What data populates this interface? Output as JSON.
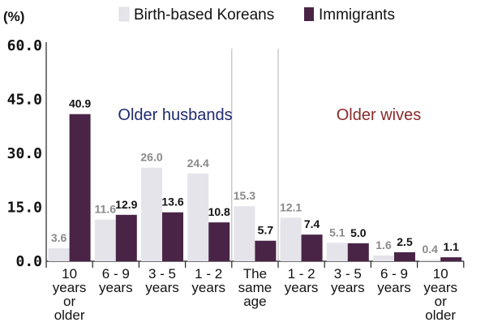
{
  "chart_data": {
    "type": "bar",
    "ylabel": "(%)",
    "ylim": [
      0,
      60
    ],
    "yticks": [
      "0.0",
      "15.0",
      "30.0",
      "45.0",
      "60.0"
    ],
    "categories": [
      [
        "10",
        "years",
        "or",
        "older"
      ],
      [
        "6 - 9",
        "years"
      ],
      [
        "3 - 5",
        "years"
      ],
      [
        "1 - 2",
        "years"
      ],
      [
        "The",
        "same",
        "age"
      ],
      [
        "1 - 2",
        "years"
      ],
      [
        "3 - 5",
        "years"
      ],
      [
        "6 - 9",
        "years"
      ],
      [
        "10",
        "years",
        "or",
        "older"
      ]
    ],
    "series": [
      {
        "name": "Birth-based Koreans",
        "values": [
          3.6,
          11.6,
          26.0,
          24.4,
          15.3,
          12.1,
          5.1,
          1.6,
          0.4
        ],
        "labels": [
          "3.6",
          "11.6",
          "26.0",
          "24.4",
          "15.3",
          "12.1",
          "5.1",
          "1.6",
          "0.4"
        ],
        "color": "#e4e4ea",
        "label_color": "#8a8a8a"
      },
      {
        "name": "Immigrants",
        "values": [
          40.9,
          12.9,
          13.6,
          10.8,
          5.7,
          7.4,
          5.0,
          2.5,
          1.1
        ],
        "labels": [
          "40.9",
          "12.9",
          "13.6",
          "10.8",
          "5.7",
          "7.4",
          "5.0",
          "2.5",
          "1.1"
        ],
        "color": "#4a2446",
        "label_color": "#111111"
      }
    ],
    "annotations": [
      {
        "text": "Older husbands",
        "color": "#1f2a6e"
      },
      {
        "text": "Older wives",
        "color": "#8a2a2a"
      }
    ],
    "legend": "top",
    "grid": false
  }
}
